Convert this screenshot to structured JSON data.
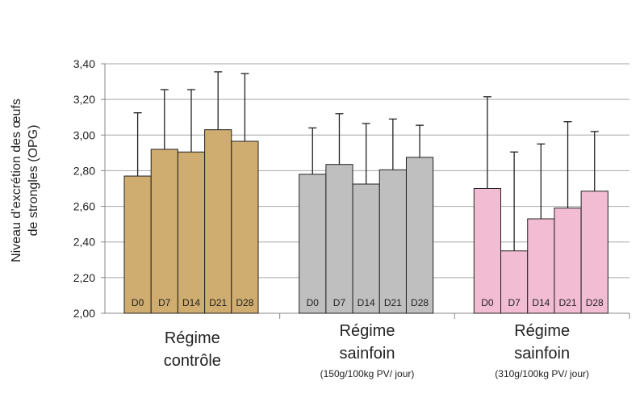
{
  "chart_data": {
    "type": "bar",
    "ylabel_lines": [
      "Niveau d’excrétion des œufs",
      "de strongles (OPG)"
    ],
    "ylim": [
      2.0,
      3.4
    ],
    "yticks": [
      "2,00",
      "2,20",
      "2,40",
      "2,60",
      "2,80",
      "3,00",
      "3,20",
      "3,40"
    ],
    "ytick_values": [
      2.0,
      2.2,
      2.4,
      2.6,
      2.8,
      3.0,
      3.2,
      3.4
    ],
    "grid": true,
    "groups": [
      {
        "label_lines": [
          "Régime",
          "contrôle"
        ],
        "sublabel": "",
        "color": "#cfac6f",
        "categories": [
          "D0",
          "D7",
          "D14",
          "D21",
          "D28"
        ],
        "values": [
          2.77,
          2.92,
          2.905,
          3.03,
          2.965
        ],
        "error_upper": [
          3.125,
          3.255,
          3.255,
          3.355,
          3.345
        ]
      },
      {
        "label_lines": [
          "Régime",
          "sainfoin"
        ],
        "sublabel": "(150g/100kg PV/ jour)",
        "color": "#bfbfbf",
        "categories": [
          "D0",
          "D7",
          "D14",
          "D21",
          "D28"
        ],
        "values": [
          2.78,
          2.835,
          2.725,
          2.805,
          2.875
        ],
        "error_upper": [
          3.04,
          3.12,
          3.065,
          3.09,
          3.055
        ]
      },
      {
        "label_lines": [
          "Régime",
          "sainfoin"
        ],
        "sublabel": "(310g/100kg PV/ jour)",
        "color": "#f2bcd3",
        "categories": [
          "D0",
          "D7",
          "D14",
          "D21",
          "D28"
        ],
        "values": [
          2.7,
          2.35,
          2.53,
          2.59,
          2.685
        ],
        "error_upper": [
          3.215,
          2.905,
          2.95,
          3.075,
          3.02
        ]
      }
    ]
  }
}
